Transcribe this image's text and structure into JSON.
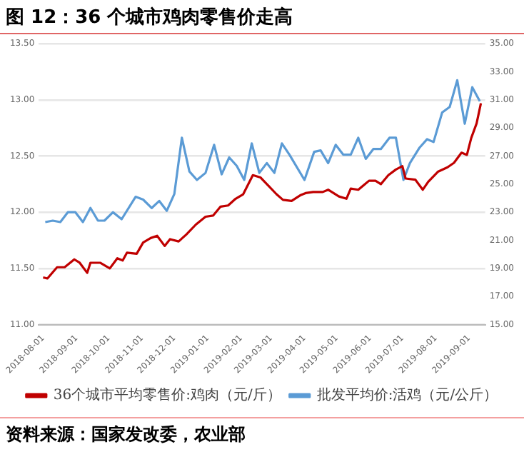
{
  "chart_data": {
    "type": "line",
    "title": "图 12：36 个城市鸡肉零售价走高",
    "annotations": [
      "资料来源：国家发改委，农业部"
    ],
    "xlim": [
      "2018-07-28",
      "2019-09-16"
    ],
    "xticks": [
      "2018-08-01",
      "2018-09-01",
      "2018-10-01",
      "2018-11-01",
      "2018-12-01",
      "2019-01-01",
      "2019-02-01",
      "2019-03-01",
      "2019-04-01",
      "2019-05-01",
      "2019-06-01",
      "2019-07-01",
      "2019-08-01",
      "2019-09-01"
    ],
    "ylim": [
      11,
      13.5
    ],
    "yticks": [
      {
        "value": 11,
        "label": "11.00"
      },
      {
        "value": 11.5,
        "label": "11.50"
      },
      {
        "value": 12,
        "label": "12.00"
      },
      {
        "value": 12.5,
        "label": "12.50"
      },
      {
        "value": 13,
        "label": "13.00"
      },
      {
        "value": 13.5,
        "label": "13.50"
      }
    ],
    "y2lim": [
      15,
      35
    ],
    "y2ticks": [
      {
        "value": 15,
        "label": "15.00"
      },
      {
        "value": 17,
        "label": "17.00"
      },
      {
        "value": 19,
        "label": "19.00"
      },
      {
        "value": 21,
        "label": "21.00"
      },
      {
        "value": 23,
        "label": "23.00"
      },
      {
        "value": 25,
        "label": "25.00"
      },
      {
        "value": 27,
        "label": "27.00"
      },
      {
        "value": 29,
        "label": "29.00"
      },
      {
        "value": 31,
        "label": "31.00"
      },
      {
        "value": 33,
        "label": "33.00"
      },
      {
        "value": 35,
        "label": "35.00"
      }
    ],
    "grid": "y",
    "legend": "bottom",
    "marker": "none",
    "line_style": "solid",
    "series": [
      {
        "name": "36个城市平均零售价:鸡肉（元/斤）",
        "color": "#c00000",
        "axis": "y",
        "x": [
          "2018-08-01",
          "2018-08-05",
          "2018-08-14",
          "2018-08-21",
          "2018-08-30",
          "2018-09-04",
          "2018-09-11",
          "2018-09-14",
          "2018-09-23",
          "2018-10-02",
          "2018-10-09",
          "2018-10-14",
          "2018-10-18",
          "2018-10-27",
          "2018-11-02",
          "2018-11-09",
          "2018-11-15",
          "2018-11-22",
          "2018-11-27",
          "2018-12-05",
          "2018-12-12",
          "2018-12-21",
          "2018-12-30",
          "2019-01-06",
          "2019-01-13",
          "2019-01-20",
          "2019-01-27",
          "2019-02-03",
          "2019-02-12",
          "2019-02-19",
          "2019-02-26",
          "2019-03-06",
          "2019-03-12",
          "2019-03-20",
          "2019-03-28",
          "2019-04-02",
          "2019-04-09",
          "2019-04-18",
          "2019-04-23",
          "2019-05-03",
          "2019-05-10",
          "2019-05-14",
          "2019-05-21",
          "2019-05-31",
          "2019-06-06",
          "2019-06-11",
          "2019-06-18",
          "2019-06-25",
          "2019-07-01",
          "2019-07-04",
          "2019-07-13",
          "2019-07-20",
          "2019-07-25",
          "2019-08-03",
          "2019-08-12",
          "2019-08-18",
          "2019-08-25",
          "2019-08-30",
          "2019-09-03",
          "2019-09-08",
          "2019-09-12"
        ],
        "values": [
          11.42,
          11.41,
          11.51,
          11.51,
          11.58,
          11.55,
          11.46,
          11.55,
          11.55,
          11.5,
          11.59,
          11.57,
          11.64,
          11.63,
          11.73,
          11.77,
          11.79,
          11.7,
          11.76,
          11.74,
          11.8,
          11.89,
          11.96,
          11.97,
          12.05,
          12.06,
          12.12,
          12.16,
          12.33,
          12.31,
          12.24,
          12.16,
          12.11,
          12.1,
          12.15,
          12.17,
          12.18,
          12.18,
          12.2,
          12.14,
          12.12,
          12.21,
          12.2,
          12.28,
          12.28,
          12.25,
          12.33,
          12.38,
          12.41,
          12.3,
          12.29,
          12.2,
          12.27,
          12.36,
          12.4,
          12.44,
          12.53,
          12.51,
          12.66,
          12.79,
          12.97
        ]
      },
      {
        "name": "批发平均价:活鸡（元/公斤）",
        "color": "#5b9bd5",
        "axis": "y2",
        "x": [
          "2018-08-03",
          "2018-08-10",
          "2018-08-17",
          "2018-08-24",
          "2018-08-31",
          "2018-09-07",
          "2018-09-14",
          "2018-09-21",
          "2018-09-27",
          "2018-10-05",
          "2018-10-13",
          "2018-10-26",
          "2018-11-02",
          "2018-11-10",
          "2018-11-17",
          "2018-11-24",
          "2018-12-01",
          "2018-12-08",
          "2018-12-15",
          "2018-12-22",
          "2018-12-30",
          "2019-01-07",
          "2019-01-14",
          "2019-01-21",
          "2019-01-28",
          "2019-02-04",
          "2019-02-11",
          "2019-02-18",
          "2019-02-25",
          "2019-03-04",
          "2019-03-11",
          "2019-03-18",
          "2019-04-01",
          "2019-04-10",
          "2019-04-16",
          "2019-04-23",
          "2019-04-30",
          "2019-05-07",
          "2019-05-14",
          "2019-05-21",
          "2019-05-28",
          "2019-06-04",
          "2019-06-11",
          "2019-06-19",
          "2019-06-25",
          "2019-07-02",
          "2019-07-08",
          "2019-07-17",
          "2019-07-24",
          "2019-07-30",
          "2019-08-07",
          "2019-08-14",
          "2019-08-21",
          "2019-08-28",
          "2019-09-04",
          "2019-09-11"
        ],
        "values": [
          22.3,
          22.4,
          22.3,
          23.0,
          23.0,
          22.3,
          23.3,
          22.4,
          22.4,
          23.0,
          22.5,
          24.1,
          23.9,
          23.3,
          23.8,
          23.1,
          24.3,
          28.3,
          25.9,
          25.3,
          25.8,
          27.8,
          25.7,
          26.9,
          26.3,
          25.3,
          27.9,
          25.8,
          26.5,
          25.8,
          27.9,
          27.1,
          25.3,
          27.3,
          27.4,
          26.5,
          27.8,
          27.1,
          27.1,
          28.3,
          26.8,
          27.5,
          27.5,
          28.3,
          28.3,
          25.3,
          26.5,
          27.6,
          28.2,
          28.0,
          30.1,
          30.5,
          32.4,
          29.3,
          31.9,
          30.9
        ]
      }
    ]
  }
}
